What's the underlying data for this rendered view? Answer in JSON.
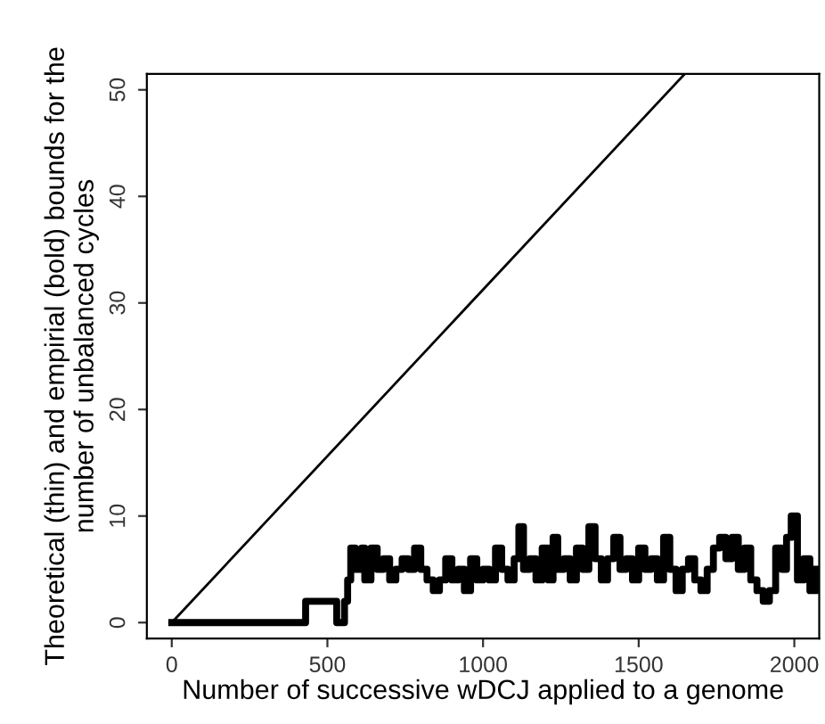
{
  "chart_data": {
    "type": "line",
    "xlabel": "Number of successive wDCJ applied to a genome",
    "ylabel": "Theoretical (thin) and empirial (bold) bounds for the\nnumber of unbalanced cycles",
    "xlim": [
      -80,
      2080
    ],
    "ylim": [
      -1.5,
      51.5
    ],
    "xticks": [
      0,
      500,
      1000,
      1500,
      2000
    ],
    "yticks": [
      0,
      10,
      20,
      30,
      40,
      50
    ],
    "grid": false,
    "legend": false,
    "series": [
      {
        "color": "#000000",
        "x": [
          0,
          1645
        ],
        "values": [
          0,
          51.4
        ]
      },
      {
        "type": "step",
        "color": "#000000",
        "x": [
          0,
          430,
          530,
          555,
          565,
          575,
          590,
          610,
          620,
          640,
          660,
          680,
          700,
          720,
          740,
          760,
          780,
          800,
          820,
          840,
          860,
          880,
          900,
          920,
          940,
          960,
          980,
          1000,
          1020,
          1040,
          1060,
          1080,
          1100,
          1115,
          1130,
          1150,
          1170,
          1190,
          1210,
          1225,
          1240,
          1260,
          1280,
          1300,
          1320,
          1340,
          1360,
          1380,
          1400,
          1420,
          1440,
          1460,
          1480,
          1500,
          1520,
          1540,
          1560,
          1580,
          1600,
          1620,
          1640,
          1660,
          1680,
          1700,
          1720,
          1740,
          1760,
          1780,
          1800,
          1820,
          1840,
          1860,
          1880,
          1900,
          1920,
          1940,
          1960,
          1975,
          1990,
          2010,
          2030,
          2050,
          2070
        ],
        "values": [
          0,
          2,
          0,
          2,
          4,
          7,
          5,
          7,
          4,
          7,
          5,
          6,
          4,
          5,
          6,
          5,
          7,
          5,
          4,
          3,
          4,
          6,
          4,
          5,
          3,
          6,
          4,
          5,
          4,
          7,
          5,
          4,
          6,
          9,
          5,
          6,
          4,
          7,
          4,
          8,
          5,
          6,
          4,
          7,
          5,
          9,
          6,
          4,
          6,
          8,
          5,
          6,
          4,
          7,
          5,
          6,
          4,
          8,
          5,
          3,
          5,
          6,
          4,
          3,
          5,
          7,
          8,
          6,
          8,
          5,
          7,
          4,
          3,
          2,
          3,
          7,
          5,
          8,
          10,
          4,
          6,
          3,
          5
        ]
      }
    ]
  }
}
